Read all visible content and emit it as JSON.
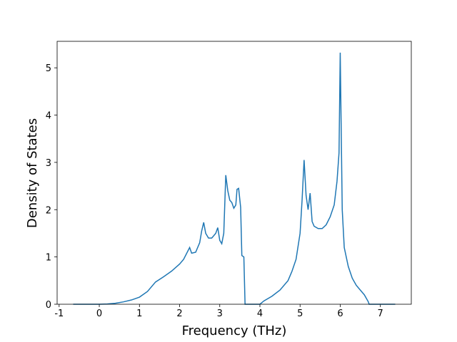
{
  "chart_data": {
    "type": "line",
    "x_label": "Frequency (THz)",
    "y_label": "Density of States",
    "x": [
      -0.65,
      0,
      0.2,
      0.4,
      0.6,
      0.8,
      1.0,
      1.2,
      1.4,
      1.6,
      1.8,
      2.0,
      2.1,
      2.25,
      2.3,
      2.4,
      2.5,
      2.55,
      2.6,
      2.65,
      2.72,
      2.8,
      2.9,
      2.95,
      3.0,
      3.05,
      3.1,
      3.15,
      3.2,
      3.25,
      3.3,
      3.35,
      3.4,
      3.43,
      3.47,
      3.52,
      3.55,
      3.6,
      3.63,
      4.0,
      4.1,
      4.3,
      4.5,
      4.7,
      4.8,
      4.9,
      5.0,
      5.05,
      5.1,
      5.15,
      5.2,
      5.25,
      5.3,
      5.35,
      5.45,
      5.55,
      5.65,
      5.75,
      5.85,
      5.92,
      5.97,
      6.0,
      6.05,
      6.1,
      6.2,
      6.3,
      6.4,
      6.5,
      6.6,
      6.7,
      6.72,
      7.37
    ],
    "series": [
      {
        "name": "DOS",
        "color": "#1f77b4",
        "values": [
          0,
          0,
          0.005,
          0.02,
          0.05,
          0.09,
          0.15,
          0.27,
          0.47,
          0.58,
          0.7,
          0.85,
          0.95,
          1.2,
          1.08,
          1.1,
          1.3,
          1.55,
          1.73,
          1.5,
          1.4,
          1.4,
          1.5,
          1.62,
          1.35,
          1.28,
          1.5,
          2.73,
          2.4,
          2.2,
          2.15,
          2.03,
          2.1,
          2.43,
          2.45,
          2.05,
          1.03,
          1.0,
          0,
          0,
          0.07,
          0.17,
          0.3,
          0.5,
          0.7,
          0.95,
          1.5,
          2.2,
          3.05,
          2.3,
          2.0,
          2.35,
          1.75,
          1.65,
          1.6,
          1.6,
          1.68,
          1.85,
          2.1,
          2.6,
          3.2,
          5.32,
          2.0,
          1.2,
          0.8,
          0.55,
          0.4,
          0.3,
          0.2,
          0.05,
          0,
          0
        ]
      }
    ],
    "xlim": [
      -1.05,
      7.77
    ],
    "ylim": [
      0,
      5.56
    ],
    "xticks": [
      -1,
      0,
      1,
      2,
      3,
      4,
      5,
      6,
      7
    ],
    "yticks": [
      0,
      1,
      2,
      3,
      4,
      5
    ]
  }
}
